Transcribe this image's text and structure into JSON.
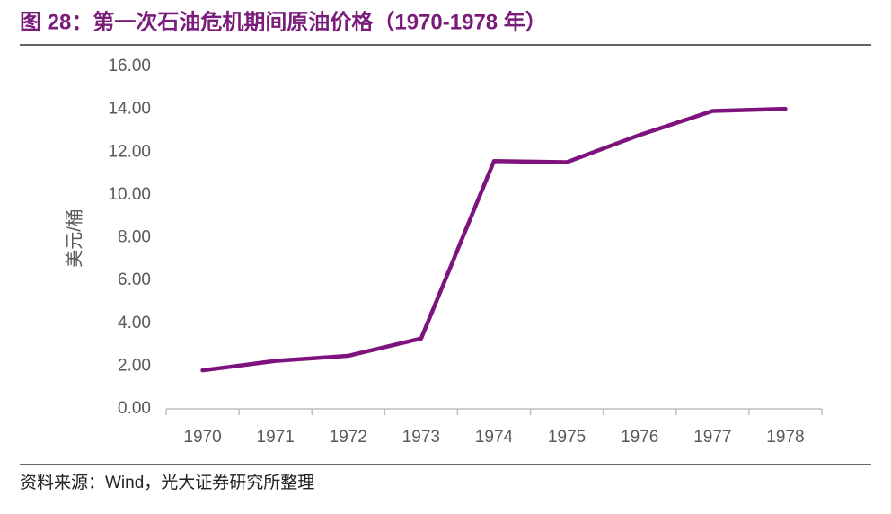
{
  "chart_data": {
    "type": "line",
    "title": "图 28：第一次石油危机期间原油价格（1970-1978 年）",
    "y_label": "美元/桶",
    "source": "资料来源：Wind，光大证券研究所整理",
    "categories": [
      "1970",
      "1971",
      "1972",
      "1973",
      "1974",
      "1975",
      "1976",
      "1977",
      "1978"
    ],
    "values": [
      1.8,
      2.24,
      2.48,
      3.29,
      11.58,
      11.53,
      12.8,
      13.92,
      14.02
    ],
    "color": "#7e137e",
    "ylim": [
      0,
      16
    ],
    "yticks": [
      {
        "value": 0,
        "label": "0.00"
      },
      {
        "value": 2,
        "label": "2.00"
      },
      {
        "value": 4,
        "label": "4.00"
      },
      {
        "value": 6,
        "label": "6.00"
      },
      {
        "value": 8,
        "label": "8.00"
      },
      {
        "value": 10,
        "label": "10.00"
      },
      {
        "value": 12,
        "label": "12.00"
      },
      {
        "value": 14,
        "label": "14.00"
      },
      {
        "value": 16,
        "label": "16.00"
      }
    ],
    "grid": false
  }
}
